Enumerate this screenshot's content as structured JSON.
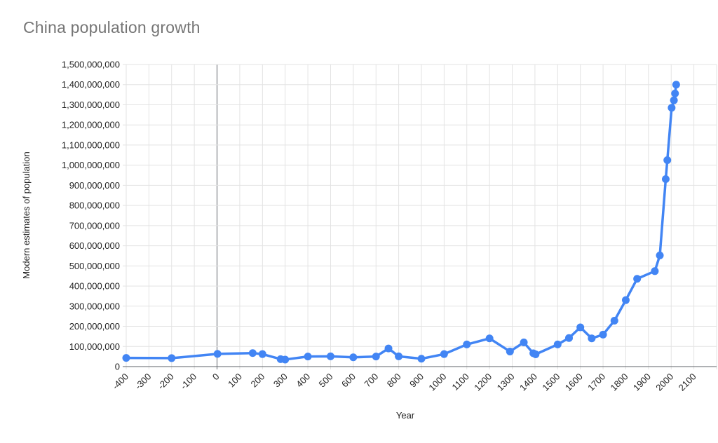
{
  "chart_data": {
    "type": "line",
    "title": "China population growth",
    "xlabel": "Year",
    "ylabel": "Modern estimates of population",
    "xlim": [
      -400,
      2200
    ],
    "ylim": [
      0,
      1500000000
    ],
    "grid": true,
    "legend_position": "none",
    "x_ticks": [
      -400,
      -300,
      -200,
      -100,
      0,
      100,
      200,
      300,
      400,
      500,
      600,
      700,
      800,
      900,
      1000,
      1100,
      1200,
      1300,
      1400,
      1500,
      1600,
      1700,
      1800,
      1900,
      2000,
      2100
    ],
    "y_ticks": [
      0,
      100000000,
      200000000,
      300000000,
      400000000,
      500000000,
      600000000,
      700000000,
      800000000,
      900000000,
      1000000000,
      1100000000,
      1200000000,
      1300000000,
      1400000000,
      1500000000
    ],
    "series": [
      {
        "name": "Modern estimates of population",
        "color": "#4285f4",
        "points": [
          [
            -400,
            43000000
          ],
          [
            -200,
            42000000
          ],
          [
            2,
            63000000
          ],
          [
            157,
            67000000
          ],
          [
            200,
            62000000
          ],
          [
            280,
            37000000
          ],
          [
            300,
            35000000
          ],
          [
            400,
            50000000
          ],
          [
            500,
            51000000
          ],
          [
            600,
            46000000
          ],
          [
            700,
            50000000
          ],
          [
            755,
            90000000
          ],
          [
            800,
            51000000
          ],
          [
            900,
            39000000
          ],
          [
            1000,
            62000000
          ],
          [
            1100,
            110000000
          ],
          [
            1200,
            140000000
          ],
          [
            1290,
            75000000
          ],
          [
            1351,
            120000000
          ],
          [
            1393,
            66000000
          ],
          [
            1403,
            61000000
          ],
          [
            1500,
            110000000
          ],
          [
            1550,
            142000000
          ],
          [
            1600,
            195000000
          ],
          [
            1650,
            140000000
          ],
          [
            1700,
            159000000
          ],
          [
            1750,
            228000000
          ],
          [
            1800,
            330000000
          ],
          [
            1850,
            436000000
          ],
          [
            1928,
            474000000
          ],
          [
            1950,
            552000000
          ],
          [
            1976,
            931000000
          ],
          [
            1983,
            1025000000
          ],
          [
            2002,
            1285000000
          ],
          [
            2012,
            1322000000
          ],
          [
            2017,
            1356000000
          ],
          [
            2022,
            1400000000
          ]
        ]
      }
    ]
  },
  "colors": {
    "line": "#4285f4",
    "gridline": "#e3e3e3",
    "baseline": "#5f6368",
    "title_text": "#757575",
    "tick_text": "#1f1f1f"
  }
}
